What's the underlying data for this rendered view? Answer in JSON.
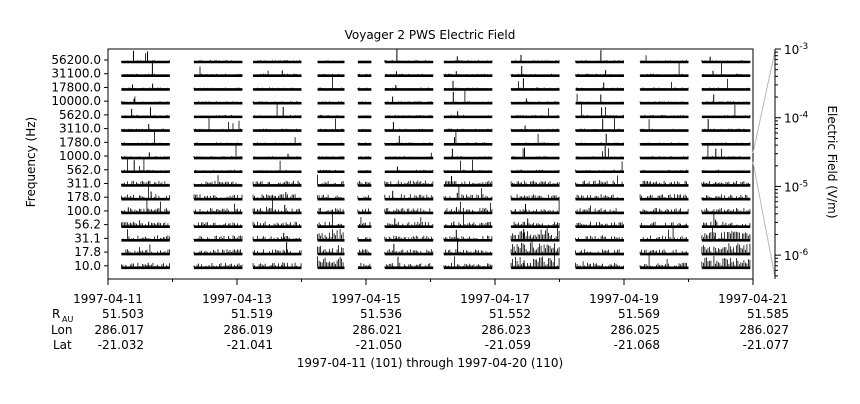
{
  "chart_data": {
    "type": "line",
    "title": "Voyager 2 PWS Electric Field",
    "ylabel": "Frequency (Hz)",
    "xlabel": "1997-04-11 (101) through 1997-04-20 (110)",
    "channels": [
      "56200.0",
      "31100.0",
      "17800.0",
      "10000.0",
      "5620.0",
      "3110.0",
      "1780.0",
      "1000.0",
      "562.0",
      "311.0",
      "178.0",
      "100.0",
      "56.2",
      "31.1",
      "17.8",
      "10.0"
    ],
    "x_ticks": [
      "1997-04-11",
      "1997-04-13",
      "1997-04-15",
      "1997-04-17",
      "1997-04-19",
      "1997-04-21"
    ],
    "xlim": [
      "1997-04-11",
      "1997-04-21"
    ],
    "ephemeris": {
      "labels": {
        "r_main": "R",
        "r_sub": "AU",
        "lon": "Lon",
        "lat": "Lat"
      },
      "r": [
        "51.503",
        "51.519",
        "51.536",
        "51.552",
        "51.569",
        "51.585"
      ],
      "lon": [
        "286.017",
        "286.019",
        "286.021",
        "286.023",
        "286.025",
        "286.027"
      ],
      "lat": [
        "-21.032",
        "-21.041",
        "-21.050",
        "-21.059",
        "-21.068",
        "-21.077"
      ]
    },
    "colorbar": {
      "label": "Electric Field (V/m)",
      "scale": "log",
      "range": [
        4.5e-07,
        0.001
      ],
      "ticks": [
        {
          "value": 0.001,
          "base": "10",
          "exp": "-3"
        },
        {
          "value": 0.0001,
          "base": "10",
          "exp": "-4"
        },
        {
          "value": 1e-05,
          "base": "10",
          "exp": "-5"
        },
        {
          "value": 1e-06,
          "base": "10",
          "exp": "-6"
        }
      ]
    },
    "data_segments": [
      [
        "1997-04-11 05:00",
        "1997-04-11 23:00"
      ],
      [
        "1997-04-12 08:00",
        "1997-04-13 02:00"
      ],
      [
        "1997-04-13 06:00",
        "1997-04-14 00:00"
      ],
      [
        "1997-04-14 06:00",
        "1997-04-14 16:00"
      ],
      [
        "1997-04-14 21:00",
        "1997-04-15 02:00"
      ],
      [
        "1997-04-15 07:00",
        "1997-04-16 01:00"
      ],
      [
        "1997-04-16 05:00",
        "1997-04-16 23:00"
      ],
      [
        "1997-04-17 06:00",
        "1997-04-18 00:00"
      ],
      [
        "1997-04-18 06:00",
        "1997-04-19 00:00"
      ],
      [
        "1997-04-19 06:00",
        "1997-04-20 00:00"
      ],
      [
        "1997-04-20 05:00",
        "1997-04-20 23:00"
      ]
    ]
  }
}
